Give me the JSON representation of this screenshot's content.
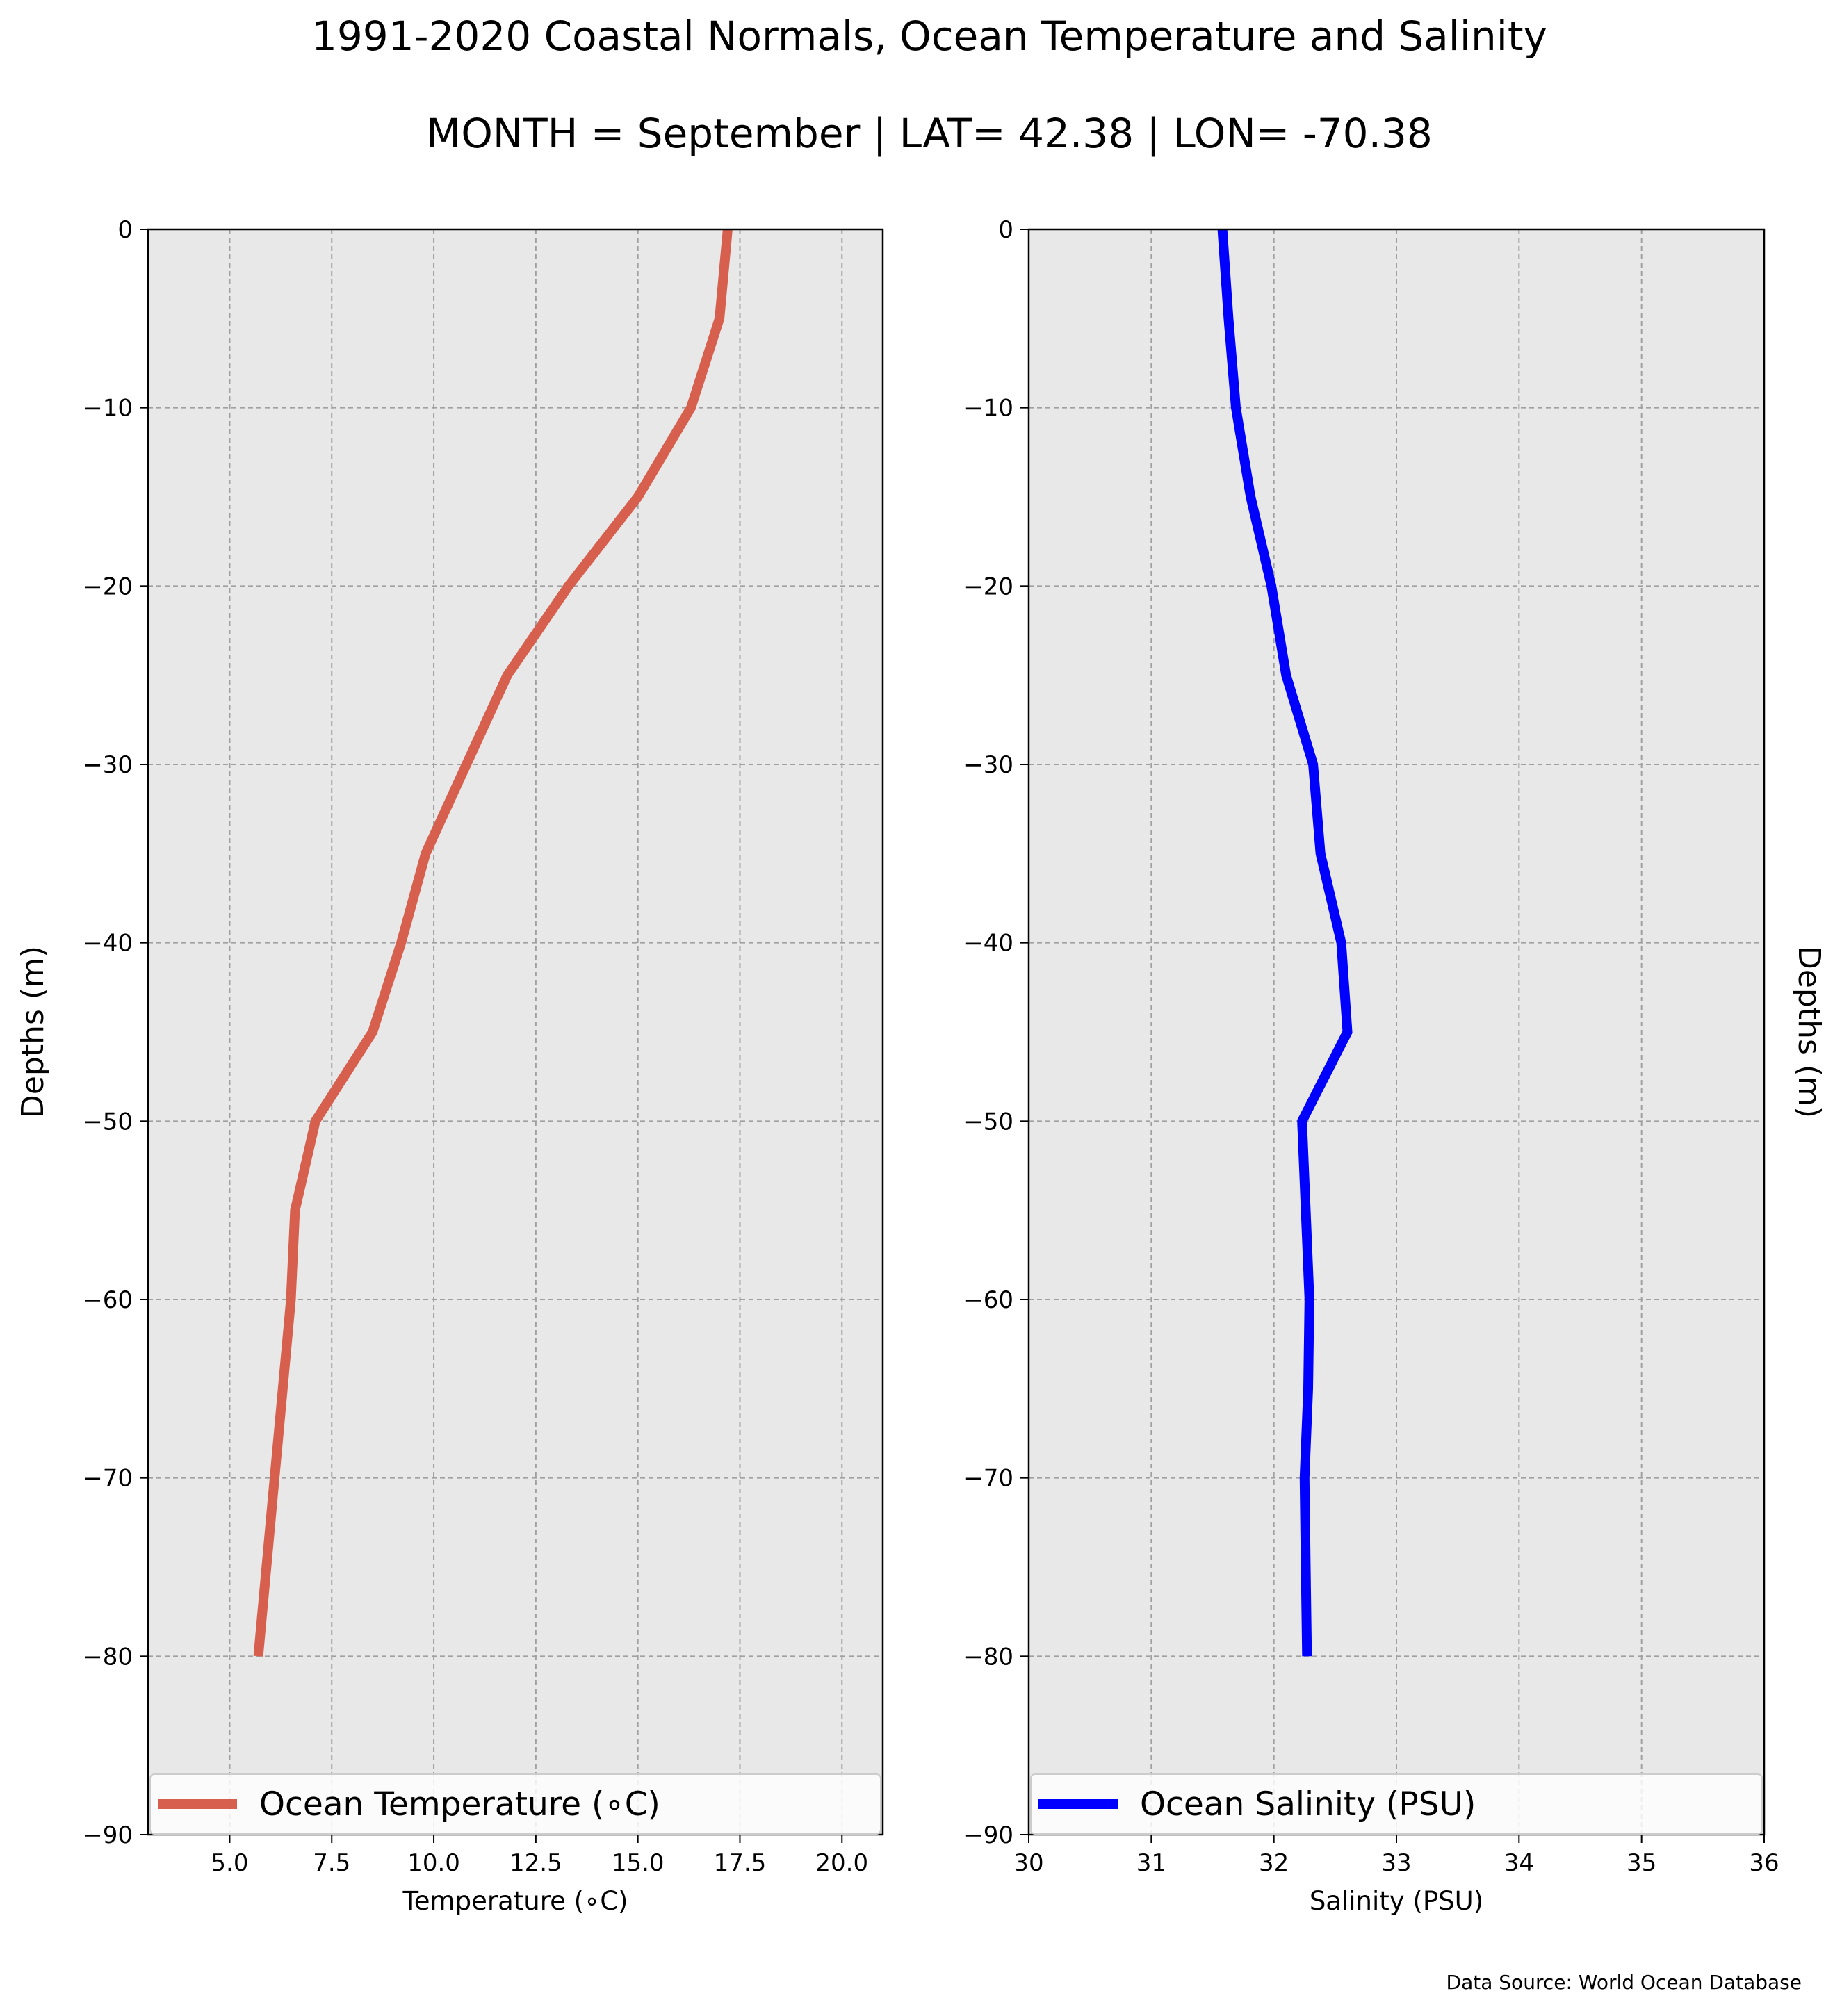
{
  "figure": {
    "title_line1": "1991-2020 Coastal Normals, Ocean Temperature and Salinity",
    "title_line2": "MONTH = September | LAT= 42.38 | LON= -70.38",
    "footer": "Data Source: World Ocean Database",
    "colors": {
      "background": "#ffffff",
      "plot_background": "#e8e8e8",
      "grid": "#a0a0a0",
      "temperature_line": "#d6604d",
      "salinity_line": "#0000ff"
    }
  },
  "chart_data": [
    {
      "type": "line",
      "orientation": "vertical-profile",
      "xlabel": "Temperature (∘C)",
      "ylabel": "Depths (m)",
      "ylabel_position": "left",
      "xlim": [
        3.0,
        21.0
      ],
      "ylim": [
        -90,
        0
      ],
      "xticks": [
        5.0,
        7.5,
        10.0,
        12.5,
        15.0,
        17.5,
        20.0
      ],
      "xtick_labels": [
        "5.0",
        "7.5",
        "10.0",
        "12.5",
        "15.0",
        "17.5",
        "20.0"
      ],
      "yticks": [
        0,
        -10,
        -20,
        -30,
        -40,
        -50,
        -60,
        -70,
        -80,
        -90
      ],
      "ytick_labels": [
        "0",
        "−10",
        "−20",
        "−30",
        "−40",
        "−50",
        "−60",
        "−70",
        "−80",
        "−90"
      ],
      "grid": true,
      "legend_position": "bottom",
      "series": [
        {
          "name": "Ocean Temperature (∘C)",
          "color": "#d6604d",
          "x": [
            17.2,
            17.0,
            16.3,
            15.0,
            13.3,
            11.8,
            10.8,
            9.8,
            9.2,
            8.5,
            7.1,
            6.6,
            6.5,
            6.3,
            6.1,
            5.9,
            5.7
          ],
          "y": [
            0,
            -5,
            -10,
            -15,
            -20,
            -25,
            -30,
            -35,
            -40,
            -45,
            -50,
            -55,
            -60,
            -65,
            -70,
            -75,
            -80
          ]
        }
      ]
    },
    {
      "type": "line",
      "orientation": "vertical-profile",
      "xlabel": "Salinity (PSU)",
      "ylabel": "Depths (m)",
      "ylabel_position": "right",
      "xlim": [
        30,
        36
      ],
      "ylim": [
        -90,
        0
      ],
      "xticks": [
        30,
        31,
        32,
        33,
        34,
        35,
        36
      ],
      "xtick_labels": [
        "30",
        "31",
        "32",
        "33",
        "34",
        "35",
        "36"
      ],
      "yticks": [
        0,
        -10,
        -20,
        -30,
        -40,
        -50,
        -60,
        -70,
        -80,
        -90
      ],
      "ytick_labels": [
        "0",
        "−10",
        "−20",
        "−30",
        "−40",
        "−50",
        "−60",
        "−70",
        "−80",
        "−90"
      ],
      "grid": true,
      "legend_position": "bottom",
      "series": [
        {
          "name": "Ocean Salinity (PSU)",
          "color": "#0000ff",
          "x": [
            31.58,
            31.63,
            31.69,
            31.81,
            31.98,
            32.1,
            32.32,
            32.38,
            32.55,
            32.6,
            32.23,
            32.26,
            32.29,
            32.28,
            32.25,
            32.26,
            32.27
          ],
          "y": [
            0,
            -5,
            -10,
            -15,
            -20,
            -25,
            -30,
            -35,
            -40,
            -45,
            -50,
            -55,
            -60,
            -65,
            -70,
            -75,
            -80
          ]
        }
      ]
    }
  ]
}
